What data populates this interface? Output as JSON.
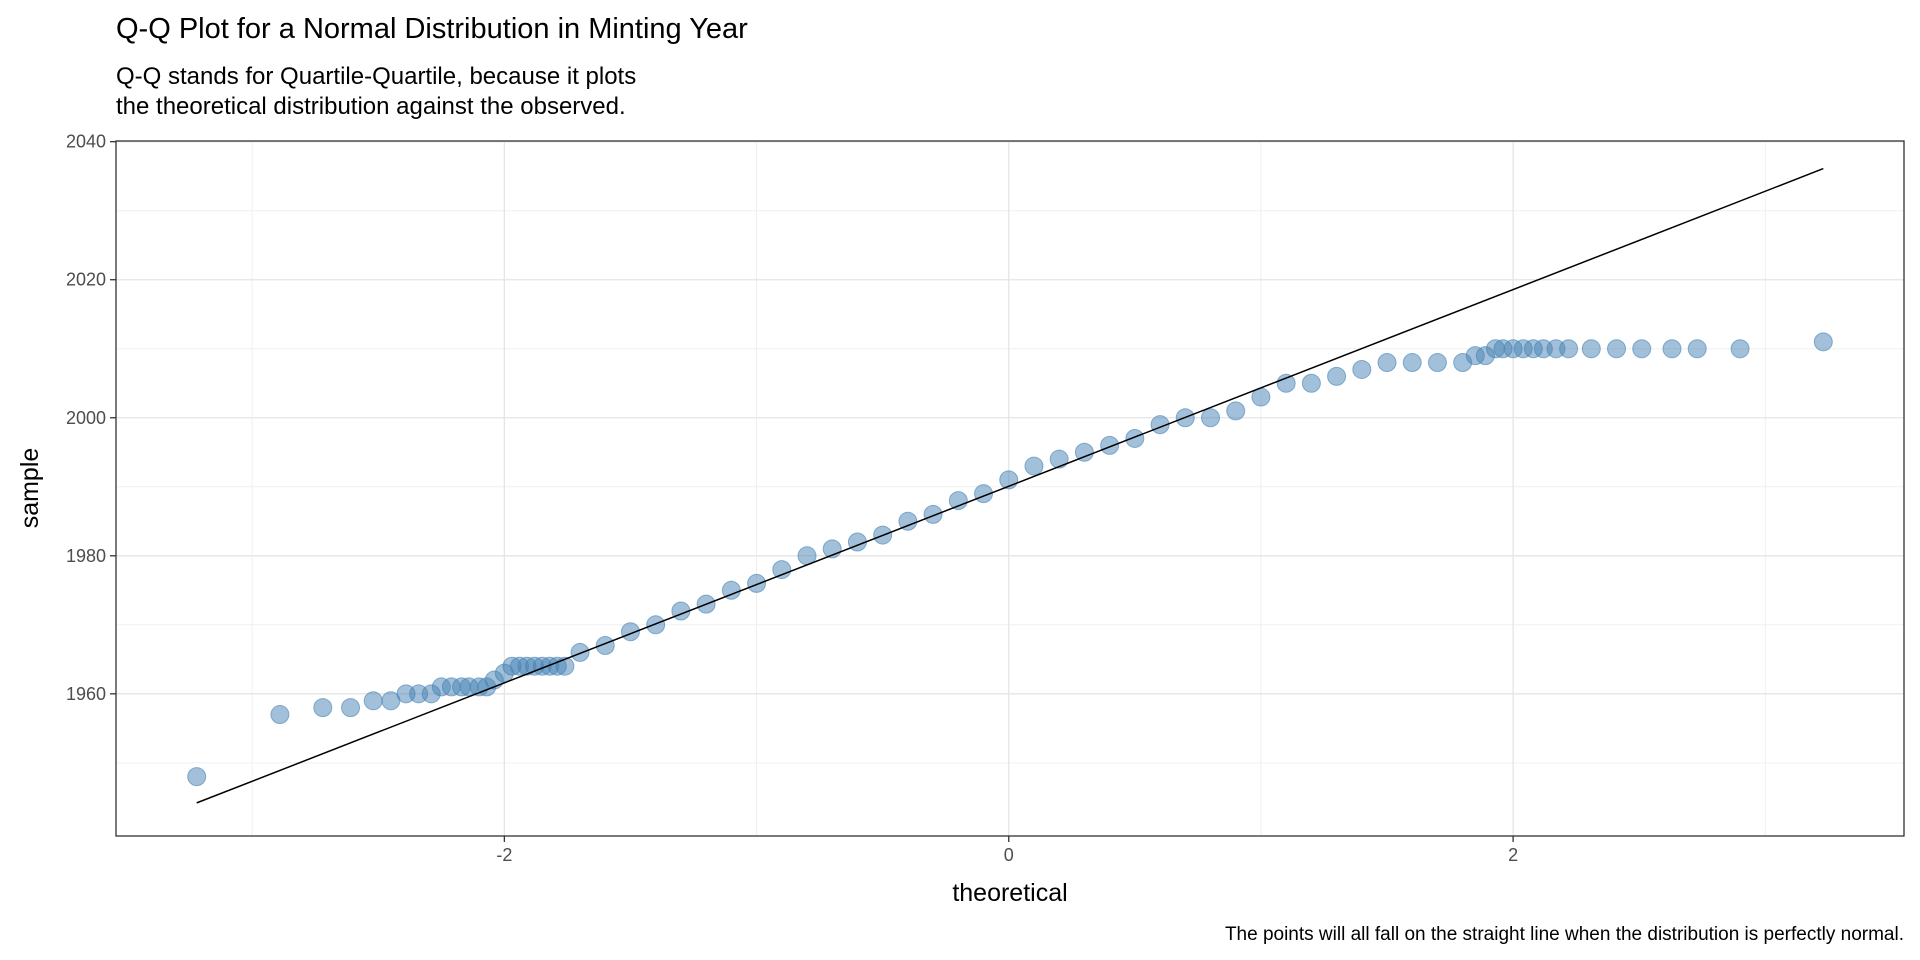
{
  "chart_data": {
    "type": "scatter",
    "title": "Q-Q Plot for a Normal Distribution in Minting Year",
    "subtitle": [
      "Q-Q stands for Quartile-Quartile, because it plots",
      "the theoretical distribution against the observed."
    ],
    "x_label": "theoretical",
    "y_label": "sample",
    "caption": "The points will all fall on the straight line when the distribution is perfectly normal.",
    "xlim": [
      -3.54,
      3.55
    ],
    "ylim": [
      1939.4,
      2040.1
    ],
    "xticks": [
      -2,
      0,
      2
    ],
    "yticks": [
      1960,
      1980,
      2000,
      2020,
      2040
    ],
    "x_minor_ticks": [
      -3,
      -1,
      1,
      3
    ],
    "y_minor_ticks": [
      1950,
      1970,
      1990,
      2010,
      2030
    ],
    "grid": true,
    "series": [
      {
        "color": "#4682b4",
        "x": [
          -3.22,
          -2.89,
          -2.72,
          -2.61,
          -2.52,
          -2.45,
          -2.39,
          -2.34,
          -2.29,
          -2.25,
          -2.21,
          -2.17,
          -2.14,
          -2.1,
          -2.07,
          -2.04,
          -2.0,
          -1.97,
          -1.94,
          -1.91,
          -1.88,
          -1.85,
          -1.82,
          -1.79,
          -1.76,
          -1.7,
          -1.6,
          -1.5,
          -1.4,
          -1.3,
          -1.2,
          -1.1,
          -1.0,
          -0.9,
          -0.8,
          -0.7,
          -0.6,
          -0.5,
          -0.4,
          -0.3,
          -0.2,
          -0.1,
          0,
          0.1,
          0.2,
          0.3,
          0.4,
          0.5,
          0.6,
          0.7,
          0.8,
          0.9,
          1.0,
          1.1,
          1.2,
          1.3,
          1.4,
          1.5,
          1.6,
          1.7,
          1.8,
          1.85,
          1.89,
          1.93,
          1.96,
          2.0,
          2.04,
          2.08,
          2.12,
          2.17,
          2.22,
          2.31,
          2.41,
          2.51,
          2.63,
          2.73,
          2.9,
          3.23
        ],
        "y": [
          1948,
          1957,
          1958,
          1958,
          1959,
          1959,
          1960,
          1960,
          1960,
          1961,
          1961,
          1961,
          1961,
          1961,
          1961,
          1962,
          1963,
          1964,
          1964,
          1964,
          1964,
          1964,
          1964,
          1964,
          1964,
          1966,
          1967,
          1969,
          1970,
          1972,
          1973,
          1975,
          1976,
          1978,
          1980,
          1981,
          1982,
          1983,
          1985,
          1986,
          1988,
          1989,
          1991,
          1993,
          1994,
          1995,
          1996,
          1997,
          1999,
          2000,
          2000,
          2001,
          2003,
          2005,
          2005,
          2006,
          2007,
          2008,
          2008,
          2008,
          2008,
          2009,
          2009,
          2010,
          2010,
          2010,
          2010,
          2010,
          2010,
          2010,
          2010,
          2010,
          2010,
          2010,
          2010,
          2010,
          2010,
          2011
        ]
      }
    ],
    "reference_line": {
      "color": "#000000",
      "x": [
        -3.22,
        3.23
      ],
      "y": [
        1944.2,
        2036.1
      ]
    }
  }
}
